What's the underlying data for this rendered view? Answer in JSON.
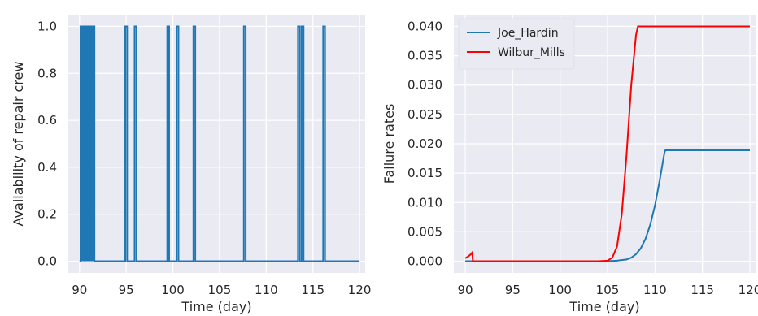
{
  "chart_data": [
    {
      "type": "line",
      "title": "",
      "xlabel": "Time (day)",
      "ylabel": "Availability of repair crew",
      "xlim": [
        88.8,
        120.6
      ],
      "ylim": [
        -0.05,
        1.05
      ],
      "xticks": [
        90,
        95,
        100,
        105,
        110,
        115,
        120
      ],
      "yticks": [
        0.0,
        0.2,
        0.4,
        0.6,
        0.8,
        1.0
      ],
      "xtick_labels": [
        "90",
        "95",
        "100",
        "105",
        "110",
        "115",
        "120"
      ],
      "ytick_labels": [
        "0.0",
        "0.2",
        "0.4",
        "0.6",
        "0.8",
        "1.0"
      ],
      "grid": true,
      "series": [
        {
          "color": "#1f77b4",
          "x": [
            90.0,
            90.1,
            90.1,
            91.6,
            91.6,
            94.9,
            94.9,
            95.1,
            95.1,
            95.9,
            95.9,
            96.1,
            96.1,
            99.4,
            99.4,
            99.6,
            99.6,
            100.4,
            100.4,
            100.6,
            100.6,
            102.2,
            102.2,
            102.4,
            102.4,
            107.6,
            107.6,
            107.8,
            107.8,
            113.4,
            113.4,
            113.6,
            113.6,
            113.8,
            113.8,
            114.0,
            114.0,
            116.1,
            116.1,
            116.3,
            116.3,
            120.0
          ],
          "y": [
            0,
            0,
            1,
            1,
            0,
            0,
            1,
            1,
            0,
            0,
            1,
            1,
            0,
            0,
            1,
            1,
            0,
            0,
            1,
            1,
            0,
            0,
            1,
            1,
            0,
            0,
            1,
            1,
            0,
            0,
            1,
            1,
            0,
            0,
            1,
            1,
            0,
            0,
            1,
            1,
            0,
            0
          ]
        }
      ],
      "dense_band": {
        "x_start": 90.1,
        "x_end": 91.6,
        "y_low": 0,
        "y_high": 1,
        "color": "#1f77b4"
      }
    },
    {
      "type": "line",
      "title": "",
      "xlabel": "Time (day)",
      "ylabel": "Failure rates",
      "xlim": [
        88.8,
        120.6
      ],
      "ylim": [
        -0.002,
        0.042
      ],
      "xticks": [
        90,
        95,
        100,
        105,
        110,
        115,
        120
      ],
      "yticks": [
        0.0,
        0.005,
        0.01,
        0.015,
        0.02,
        0.025,
        0.03,
        0.035,
        0.04
      ],
      "xtick_labels": [
        "90",
        "95",
        "100",
        "105",
        "110",
        "115",
        "120"
      ],
      "ytick_labels": [
        "0.000",
        "0.005",
        "0.010",
        "0.015",
        "0.020",
        "0.025",
        "0.030",
        "0.035",
        "0.040"
      ],
      "grid": true,
      "legend": "top-left",
      "series": [
        {
          "name": "Joe_Hardin",
          "color": "#1f77b4",
          "x": [
            90,
            100,
            104,
            105,
            106,
            107,
            107.5,
            108,
            108.5,
            109,
            109.5,
            110,
            110.5,
            111,
            111.1,
            120
          ],
          "y": [
            0,
            0,
            0,
            2e-05,
            0.0001,
            0.0003,
            0.0006,
            0.0012,
            0.0022,
            0.0038,
            0.0062,
            0.0095,
            0.0138,
            0.0185,
            0.0189,
            0.0189
          ]
        },
        {
          "name": "Wilbur_Mills",
          "color": "#ff0000",
          "x": [
            90,
            90.3,
            90.6,
            90.75,
            90.8,
            91.5,
            104,
            105,
            105.5,
            106,
            106.5,
            107,
            107.5,
            108,
            108.2,
            120
          ],
          "y": [
            0.0005,
            0.0008,
            0.0012,
            0.0015,
            0,
            0,
            0,
            0.0001,
            0.0006,
            0.0025,
            0.008,
            0.018,
            0.03,
            0.0385,
            0.04,
            0.04
          ]
        }
      ]
    }
  ]
}
